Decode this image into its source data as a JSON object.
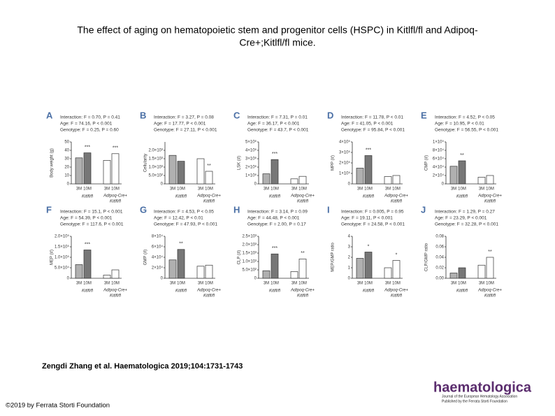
{
  "title_lines": [
    "The effect of aging on hematopoietic stem and progenitor cells (HSPC) in Kitlfl/fl and Adipoq-",
    "Cre+;Kitlfl/fl mice."
  ],
  "citation": "Zengdi Zhang et al. Haematologica 2019;104:1731-1743",
  "copyright": "©2019 by Ferrata Storti Foundation",
  "logo": {
    "name": "haematologica",
    "lines": [
      "Journal of the European Hematology Association",
      "Published by the Ferrata Storti Foundation"
    ]
  },
  "groups": [
    "Kitlfl/fl",
    "Adipoq-Cre+",
    "Kitlfl/fl"
  ],
  "chart_data": [
    {
      "type": "bar",
      "title": "A",
      "annotations": [
        "Interaction: F = 0.70, P = 0.41",
        "Age: F = 74.16, P < 0.001",
        "Genotype: F = 0.25, P = 0.60"
      ],
      "ylabel": "Body weight (g)",
      "categories": [
        "3M",
        "10M",
        "3M",
        "10M"
      ],
      "values": [
        31,
        37,
        28,
        36
      ],
      "sig": [
        null,
        "***",
        null,
        "***"
      ],
      "colors": [
        "#b0b0b0",
        "#777777",
        "#ffffff",
        "#ffffff"
      ],
      "ylim": [
        0,
        50
      ],
      "yticks": [
        0,
        10,
        20,
        30,
        40,
        50
      ]
    },
    {
      "type": "bar",
      "title": "B",
      "annotations": [
        "Interaction: F = 3.27, P = 0.08",
        "Age: F = 17.77, P < 0.001",
        "Genotype: F = 27.11, P < 0.001"
      ],
      "ylabel": "Cellularity",
      "categories": [
        "3M",
        "10M",
        "3M",
        "10M"
      ],
      "values": [
        1700,
        1350,
        1500,
        750
      ],
      "sig": [
        null,
        null,
        null,
        "**"
      ],
      "colors": [
        "#b0b0b0",
        "#777777",
        "#ffffff",
        "#ffffff"
      ],
      "ylim": [
        0,
        2500
      ],
      "yticks": [
        0,
        {
          "value": 500,
          "label": "5.0×10²"
        },
        {
          "value": 1000,
          "label": "1.0×10³"
        },
        {
          "value": 1500,
          "label": "1.5×10³"
        },
        {
          "value": 2000,
          "label": "2.0×10³"
        }
      ]
    },
    {
      "type": "bar",
      "title": "C",
      "annotations": [
        "Interaction: F = 7.31, P = 0.01",
        "Age: F = 36.17, P < 0.001",
        "Genotype: F = 43.7, P < 0.001"
      ],
      "ylabel": "LSK (#)",
      "categories": [
        "3M",
        "10M",
        "3M",
        "10M"
      ],
      "values": [
        1200000,
        2900000,
        600000,
        900000
      ],
      "sig": [
        null,
        "***",
        null,
        null
      ],
      "colors": [
        "#b0b0b0",
        "#777777",
        "#ffffff",
        "#ffffff"
      ],
      "ylim": [
        0,
        5000000
      ],
      "yticks": [
        0,
        {
          "value": 1000000,
          "label": "1×10⁶"
        },
        {
          "value": 2000000,
          "label": "2×10⁶"
        },
        {
          "value": 3000000,
          "label": "3×10⁶"
        },
        {
          "value": 4000000,
          "label": "4×10⁶"
        },
        {
          "value": 5000000,
          "label": "5×10⁶"
        }
      ]
    },
    {
      "type": "bar",
      "title": "D",
      "annotations": [
        "Interaction: F = 11.78, P < 0.01",
        "Age: F = 41.05, P < 0.001",
        "Genotype: F = 95.84, P < 0.001"
      ],
      "ylabel": "MPP (#)",
      "categories": [
        "3M",
        "10M",
        "3M",
        "10M"
      ],
      "values": [
        150000,
        270000,
        70000,
        80000
      ],
      "sig": [
        null,
        "***",
        null,
        null
      ],
      "colors": [
        "#b0b0b0",
        "#777777",
        "#ffffff",
        "#ffffff"
      ],
      "ylim": [
        0,
        400000
      ],
      "yticks": [
        0,
        {
          "value": 100000,
          "label": "1×10⁵"
        },
        {
          "value": 200000,
          "label": "2×10⁵"
        },
        {
          "value": 300000,
          "label": "3×10⁵"
        },
        {
          "value": 400000,
          "label": "4×10⁵"
        }
      ]
    },
    {
      "type": "bar",
      "title": "E",
      "annotations": [
        "Interaction: F = 4.52, P < 0.05",
        "Age: F = 10.95, P < 0.01",
        "Genotype: F = 56.55, P < 0.001"
      ],
      "ylabel": "CMP (#)",
      "categories": [
        "3M",
        "10M",
        "3M",
        "10M"
      ],
      "values": [
        42000,
        55000,
        16000,
        20000
      ],
      "sig": [
        null,
        "**",
        null,
        null
      ],
      "colors": [
        "#b0b0b0",
        "#777777",
        "#ffffff",
        "#ffffff"
      ],
      "ylim": [
        0,
        100000
      ],
      "yticks": [
        0,
        {
          "value": 20000,
          "label": "2×10⁴"
        },
        {
          "value": 40000,
          "label": "4×10⁴"
        },
        {
          "value": 60000,
          "label": "6×10⁴"
        },
        {
          "value": 80000,
          "label": "8×10⁴"
        },
        {
          "value": 100000,
          "label": "1×10⁵"
        }
      ]
    },
    {
      "type": "bar",
      "title": "F",
      "annotations": [
        "Interaction: F = 15.1, P < 0.001",
        "Age: F = 54.39, P < 0.001",
        "Genotype: F = 117.6, P < 0.001"
      ],
      "ylabel": "MEP (#)",
      "categories": [
        "3M",
        "10M",
        "3M",
        "10M"
      ],
      "values": [
        65000,
        135000,
        15000,
        40000
      ],
      "sig": [
        null,
        "***",
        null,
        null
      ],
      "colors": [
        "#b0b0b0",
        "#777777",
        "#ffffff",
        "#ffffff"
      ],
      "ylim": [
        0,
        200000
      ],
      "yticks": [
        0,
        {
          "value": 50000,
          "label": "5.0×10⁴"
        },
        {
          "value": 100000,
          "label": "1.0×10⁵"
        },
        {
          "value": 150000,
          "label": "1.5×10⁵"
        },
        {
          "value": 200000,
          "label": "2.0×10⁵"
        }
      ]
    },
    {
      "type": "bar",
      "title": "G",
      "annotations": [
        "Interaction: F = 4.53, P < 0.05",
        "Age: F = 12.42, P < 0.01",
        "Genotype: F = 47.93, P < 0.001"
      ],
      "ylabel": "GMP (#)",
      "categories": [
        "3M",
        "10M",
        "3M",
        "10M"
      ],
      "values": [
        35000,
        55000,
        23000,
        25000
      ],
      "sig": [
        null,
        "**",
        null,
        null
      ],
      "colors": [
        "#b0b0b0",
        "#777777",
        "#ffffff",
        "#ffffff"
      ],
      "ylim": [
        0,
        80000
      ],
      "yticks": [
        0,
        {
          "value": 20000,
          "label": "2×10⁴"
        },
        {
          "value": 40000,
          "label": "4×10⁴"
        },
        {
          "value": 60000,
          "label": "6×10⁴"
        },
        {
          "value": 80000,
          "label": "8×10⁴"
        }
      ]
    },
    {
      "type": "bar",
      "title": "H",
      "annotations": [
        "Interaction: F = 3.14, P = 0.09",
        "Age: F = 44.48, P < 0.001",
        "Genotype: F = 2.00, P = 0.17"
      ],
      "ylabel": "CLP (#)",
      "categories": [
        "3M",
        "10M",
        "3M",
        "10M"
      ],
      "values": [
        450,
        1450,
        400,
        1150
      ],
      "sig": [
        null,
        "***",
        null,
        "**"
      ],
      "colors": [
        "#b0b0b0",
        "#777777",
        "#ffffff",
        "#ffffff"
      ],
      "ylim": [
        0,
        2500
      ],
      "yticks": [
        0,
        {
          "value": 500,
          "label": "5.0×10²"
        },
        {
          "value": 1000,
          "label": "1.0×10³"
        },
        {
          "value": 1500,
          "label": "1.5×10³"
        },
        {
          "value": 2000,
          "label": "2.0×10³"
        },
        {
          "value": 2500,
          "label": "2.5×10³"
        }
      ]
    },
    {
      "type": "bar",
      "title": "I",
      "annotations": [
        "Interaction: F = 0.005, P = 0.95",
        "Age: F = 19.11, P < 0.001",
        "Genotype: F = 24.58, P < 0.001"
      ],
      "ylabel": "MEP/GMP ratio",
      "categories": [
        "3M",
        "10M",
        "3M",
        "10M"
      ],
      "values": [
        1.9,
        2.5,
        1.0,
        1.7
      ],
      "sig": [
        null,
        "*",
        null,
        "*"
      ],
      "colors": [
        "#b0b0b0",
        "#777777",
        "#ffffff",
        "#ffffff"
      ],
      "ylim": [
        0,
        4
      ],
      "yticks": [
        0,
        1,
        2,
        3,
        4
      ]
    },
    {
      "type": "bar",
      "title": "J",
      "annotations": [
        "Interaction: F = 1.29, P = 0.27",
        "Age: F = 23.29, P < 0.001",
        "Genotype: F = 32.28, P < 0.001"
      ],
      "ylabel": "CLP/GMP ratio",
      "categories": [
        "3M",
        "10M",
        "3M",
        "10M"
      ],
      "values": [
        0.01,
        0.02,
        0.025,
        0.04
      ],
      "sig": [
        null,
        null,
        null,
        "**"
      ],
      "colors": [
        "#b0b0b0",
        "#777777",
        "#ffffff",
        "#ffffff"
      ],
      "ylim": [
        0,
        0.08
      ],
      "yticks": [
        {
          "value": 0,
          "label": "0.00"
        },
        {
          "value": 0.02,
          "label": "0.02"
        },
        {
          "value": 0.04,
          "label": "0.04"
        },
        {
          "value": 0.06,
          "label": "0.06"
        },
        {
          "value": 0.08,
          "label": "0.08"
        }
      ]
    }
  ]
}
